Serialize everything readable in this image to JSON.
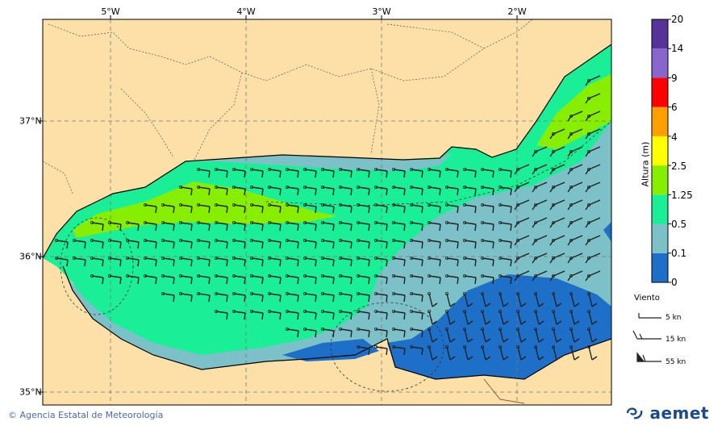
{
  "map": {
    "lon_labels": [
      "5°W",
      "4°W",
      "3°W",
      "2°W"
    ],
    "lat_labels": [
      "37°N",
      "36°N",
      "35°N"
    ]
  },
  "legend": {
    "title": "Altura (m)",
    "levels": [
      "0",
      "0.1",
      "0.5",
      "1.25",
      "2.5",
      "4",
      "6",
      "9",
      "14",
      "20"
    ],
    "colors": [
      "#1e6fc8",
      "#7cc0c8",
      "#1aee96",
      "#88ee00",
      "#ffff00",
      "#ffa000",
      "#ff0000",
      "#8866cc",
      "#553399"
    ]
  },
  "wind_legend": {
    "title": "Viento",
    "items": [
      "5 kn",
      "15 kn",
      "55 kn"
    ]
  },
  "footer": {
    "credit": "Agencia Estatal de Meteorología",
    "copyright_symbol": "©",
    "logo": "aemet"
  },
  "colors": {
    "land": "#fde0a8",
    "frame": "#000000",
    "grid": "#777777"
  }
}
